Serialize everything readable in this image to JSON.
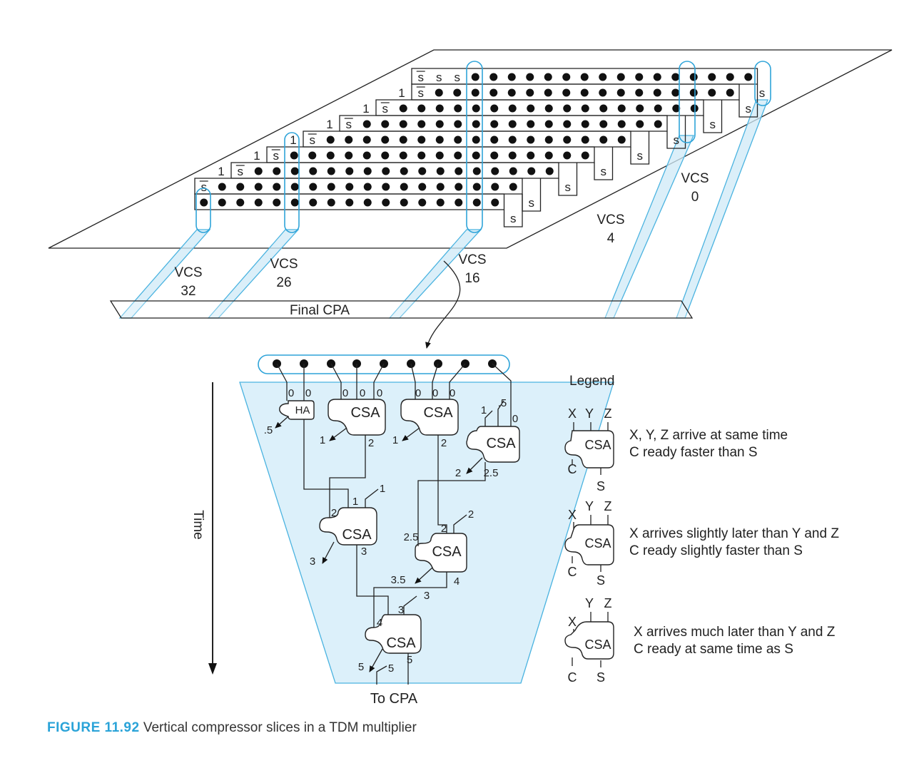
{
  "caption": {
    "number": "FIGURE 11.92",
    "text": "Vertical compressor slices in a TDM multiplier"
  },
  "top": {
    "final_cpa_label": "Final CPA",
    "row_labels": {
      "one": "1",
      "s": "s",
      "s_bar": "s"
    },
    "vcs": [
      {
        "name": "VCS",
        "index": "32"
      },
      {
        "name": "VCS",
        "index": "26"
      },
      {
        "name": "VCS",
        "index": "16"
      },
      {
        "name": "VCS",
        "index": "4"
      },
      {
        "name": "VCS",
        "index": "0"
      }
    ]
  },
  "bottom": {
    "time_label": "Time",
    "to_cpa_label": "To CPA",
    "ha_label": "HA",
    "csa_label": "CSA",
    "timing": {
      "t0": "0",
      "t05": ".5",
      "t1": "1",
      "t2": "2",
      "t25": "2.5",
      "t3": "3",
      "t35": "3.5",
      "t4": "4",
      "t5": "5"
    }
  },
  "legend": {
    "title": "Legend",
    "pins": {
      "x": "X",
      "y": "Y",
      "z": "Z",
      "c": "C",
      "s": "S"
    },
    "block_label": "CSA",
    "entries": [
      {
        "line1": "X, Y, Z arrive at same time",
        "line2": "C ready faster than S"
      },
      {
        "line1": "X arrives slightly later than Y and Z",
        "line2": "C ready slightly faster than S"
      },
      {
        "line1": "X arrives much later than Y and Z",
        "line2": "C ready at same time as S"
      }
    ]
  }
}
